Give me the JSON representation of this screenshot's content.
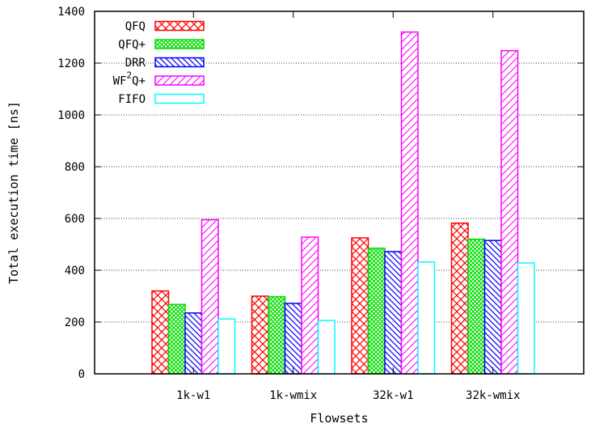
{
  "chart_data": {
    "type": "bar",
    "title": "",
    "xlabel": "Flowsets",
    "ylabel": "Total execution time [ns]",
    "ylim": [
      0,
      1400
    ],
    "yticks": [
      0,
      200,
      400,
      600,
      800,
      1000,
      1200,
      1400
    ],
    "grid": "horizontal dotted",
    "legend_position": "top-left",
    "categories": [
      "1k-w1",
      "1k-wmix",
      "32k-w1",
      "32k-wmix"
    ],
    "series": [
      {
        "name": "QFQ",
        "values": [
          320,
          300,
          525,
          582
        ],
        "color": "#ff0000",
        "pattern": "crosshatch"
      },
      {
        "name": "QFQ+",
        "values": [
          268,
          298,
          485,
          520
        ],
        "color": "#00dd00",
        "pattern": "fine-crosshatch"
      },
      {
        "name": "DRR",
        "values": [
          235,
          272,
          472,
          515
        ],
        "color": "#0000ff",
        "pattern": "backslash-hatch"
      },
      {
        "name": "WF²Q+",
        "legend_main": "WF",
        "legend_sup": "2",
        "legend_tail": "Q+",
        "values": [
          595,
          528,
          1320,
          1248
        ],
        "color": "#ff00ff",
        "pattern": "slash-hatch"
      },
      {
        "name": "FIFO",
        "values": [
          212,
          206,
          432,
          428
        ],
        "color": "#00ffff",
        "pattern": "none"
      }
    ]
  }
}
